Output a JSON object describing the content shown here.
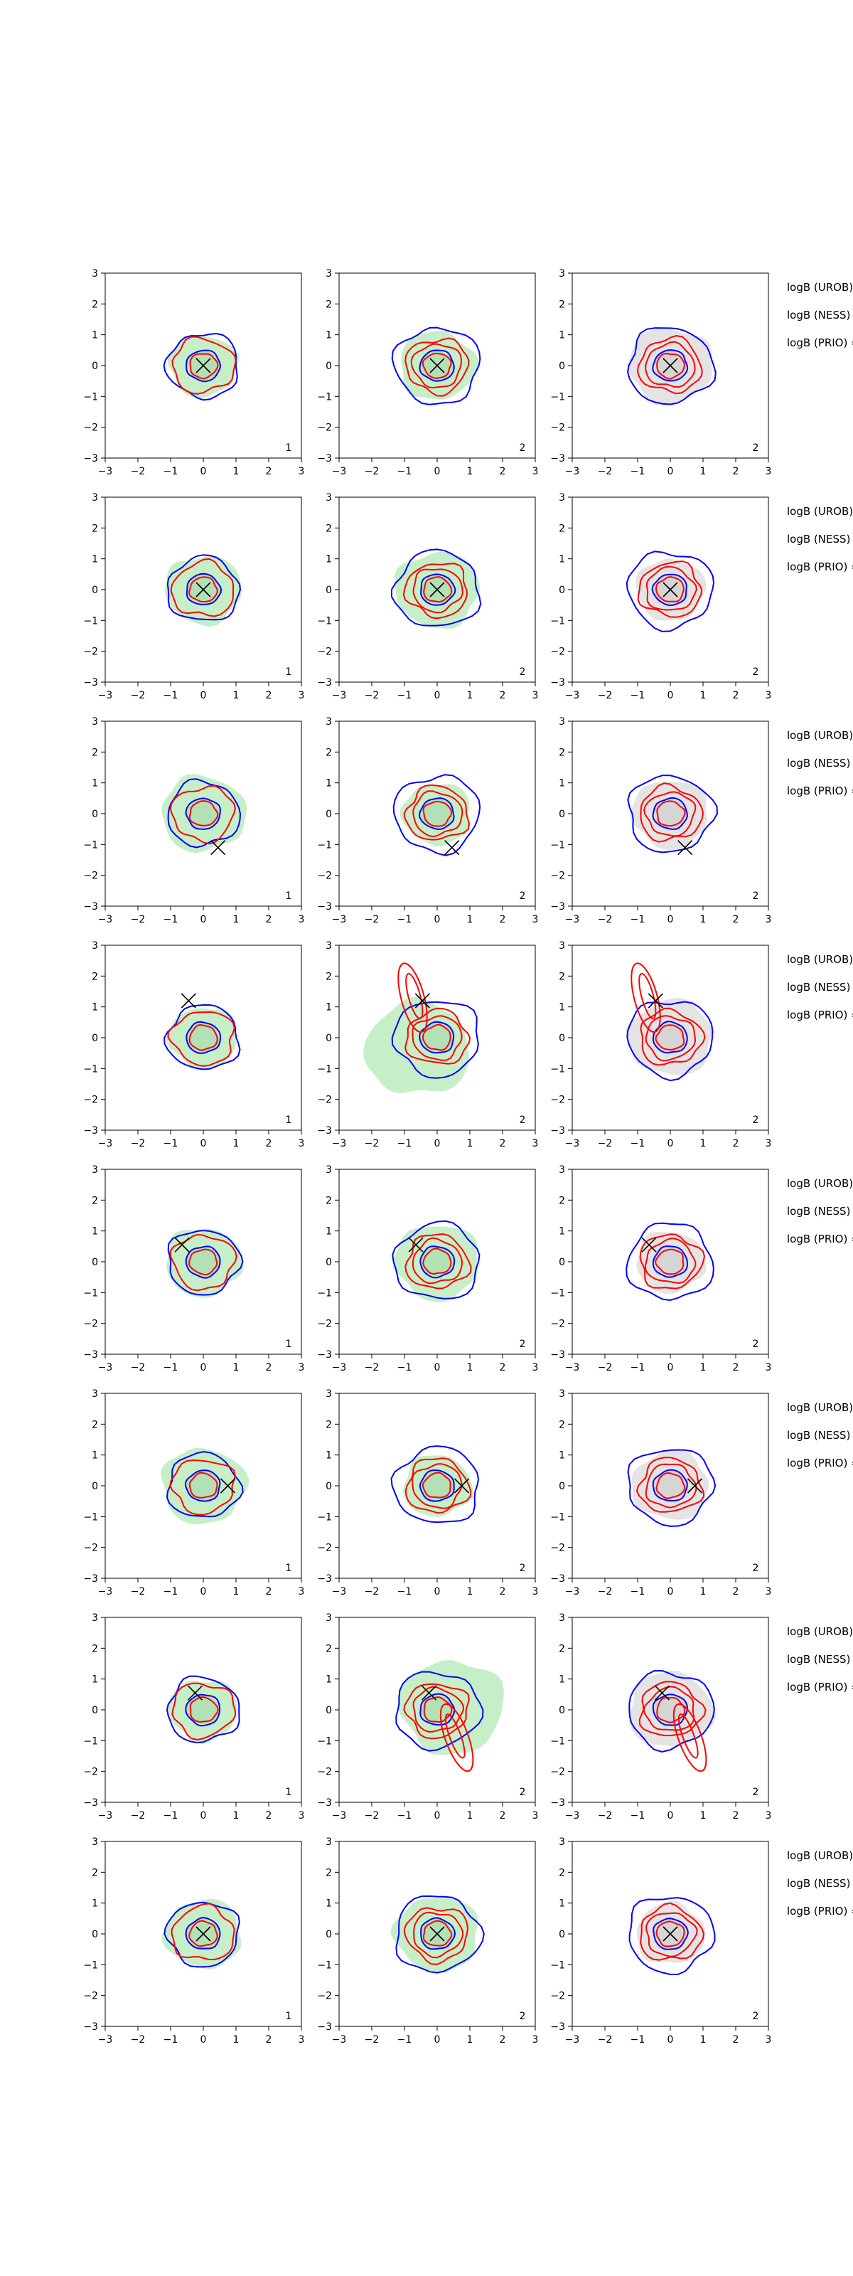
{
  "chart_data": {
    "type": "contour-grid",
    "title": "",
    "rows": 8,
    "cols": 3,
    "xlim": [
      -3,
      3
    ],
    "ylim": [
      -3,
      3
    ],
    "xticks": [
      -3,
      -2,
      -1,
      0,
      1,
      2,
      3
    ],
    "yticks": [
      -3,
      -2,
      -1,
      0,
      1,
      2,
      3
    ],
    "col_labels": [
      "1",
      "2",
      "2"
    ],
    "side_labels": [
      "logB (UROB) =",
      "logB (NESS) =",
      "logB (PRIO) ="
    ],
    "colors": {
      "blue_contour": "#0000ff",
      "red_contour": "#ff0000",
      "green_fill": "#c6efc8",
      "gray_fill": "#e4e4e4",
      "marker": "#000000"
    },
    "markers": [
      [
        0.0,
        0.0
      ],
      [
        0.0,
        0.0
      ],
      [
        0.45,
        -1.1
      ],
      [
        -0.45,
        1.2
      ],
      [
        -0.65,
        0.55
      ],
      [
        0.75,
        0.0
      ],
      [
        -0.25,
        0.55
      ],
      [
        0.0,
        0.0
      ]
    ],
    "red_tail_rows": [
      3,
      6
    ]
  }
}
